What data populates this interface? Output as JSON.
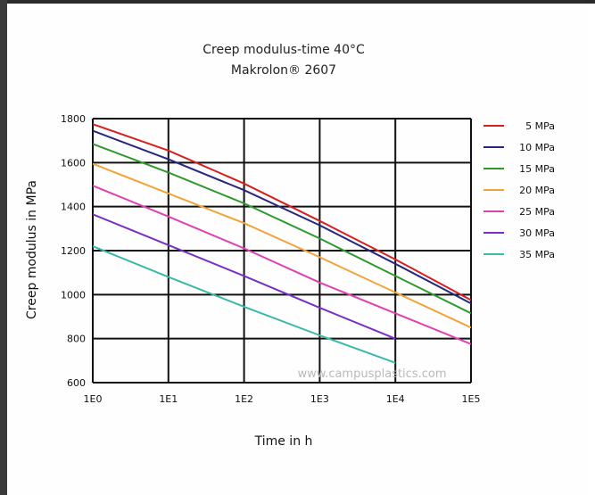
{
  "chart_data": {
    "type": "line",
    "title": "Creep modulus-time 40°C",
    "subtitle": "Makrolon® 2607",
    "xlabel": "Time in h",
    "ylabel": "Creep modulus in MPa",
    "x_scale": "log",
    "xlim": [
      1,
      100000
    ],
    "ylim": [
      600,
      1800
    ],
    "x_ticks": [
      "1E0",
      "1E1",
      "1E2",
      "1E3",
      "1E4",
      "1E5"
    ],
    "y_ticks": [
      "1800",
      "1600",
      "1400",
      "1200",
      "1000",
      "800",
      "600"
    ],
    "grid": true,
    "legend_position": "right",
    "watermark": "www.campusplastics.com",
    "series": [
      {
        "name": "5 MPa",
        "color": "#d62020",
        "x": [
          1,
          10,
          100,
          1000,
          10000,
          100000
        ],
        "y": [
          1775,
          1655,
          1505,
          1335,
          1160,
          975
        ]
      },
      {
        "name": "10 MPa",
        "color": "#27277f",
        "x": [
          1,
          10,
          100,
          1000,
          10000,
          100000
        ],
        "y": [
          1745,
          1615,
          1475,
          1315,
          1140,
          960
        ]
      },
      {
        "name": "15 MPa",
        "color": "#2e9a2e",
        "x": [
          1,
          10,
          100,
          1000,
          10000,
          100000
        ],
        "y": [
          1685,
          1555,
          1415,
          1255,
          1085,
          915
        ]
      },
      {
        "name": "20 MPa",
        "color": "#f2a33a",
        "x": [
          1,
          10,
          100,
          1000,
          10000,
          100000
        ],
        "y": [
          1595,
          1460,
          1325,
          1170,
          1010,
          850
        ]
      },
      {
        "name": "25 MPa",
        "color": "#e040b0",
        "x": [
          1,
          10,
          100,
          1000,
          10000,
          100000
        ],
        "y": [
          1495,
          1355,
          1210,
          1055,
          915,
          775
        ]
      },
      {
        "name": "30 MPa",
        "color": "#7a2fc4",
        "x": [
          1,
          10,
          100,
          1000,
          10000
        ],
        "y": [
          1365,
          1225,
          1085,
          940,
          800
        ]
      },
      {
        "name": "35 MPa",
        "color": "#3ab8a8",
        "x": [
          1,
          10,
          100,
          1000,
          10000
        ],
        "y": [
          1220,
          1080,
          945,
          815,
          690
        ]
      }
    ]
  }
}
